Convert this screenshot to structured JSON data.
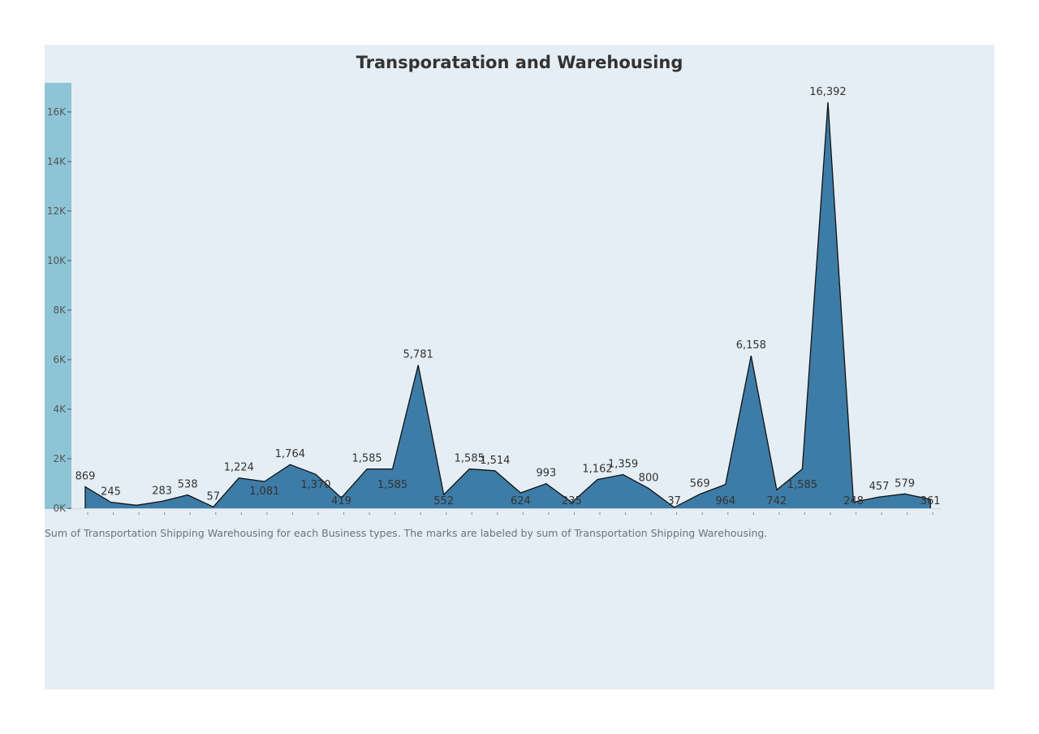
{
  "chart_data": {
    "type": "area",
    "title": "Transporatation and Warehousing",
    "caption": "Sum of Transportation Shipping Warehousing for each Business types.  The marks are labeled by sum of Transportation Shipping Warehousing.",
    "xlabel": "",
    "ylabel": "",
    "ylim": [
      0,
      17000
    ],
    "yticks": [
      0,
      2000,
      4000,
      6000,
      8000,
      10000,
      12000,
      14000,
      16000
    ],
    "ytick_labels": [
      "0K",
      "2K",
      "4K",
      "6K",
      "8K",
      "10K",
      "12K",
      "14K",
      "16K"
    ],
    "grid": false,
    "legend": "none",
    "values": [
      869,
      245,
      120,
      283,
      538,
      57,
      1224,
      1081,
      1764,
      1370,
      419,
      1585,
      1585,
      5781,
      552,
      1585,
      1514,
      624,
      993,
      235,
      1162,
      1359,
      800,
      37,
      569,
      964,
      6158,
      742,
      1585,
      16392,
      248,
      457,
      579,
      361
    ],
    "labels": [
      "869",
      "245",
      "",
      "283",
      "538",
      "57",
      "1,224",
      "1,081",
      "1,764",
      "1,370",
      "419",
      "1,585",
      "1,585",
      "5,781",
      "552",
      "1,585",
      "1,514",
      "624",
      "993",
      "235",
      "1,162",
      "1,359",
      "800",
      "37",
      "569",
      "964",
      "6,158",
      "742",
      "1,585",
      "16,392",
      "248",
      "457",
      "579",
      "361"
    ],
    "label_side": [
      "above",
      "above",
      "none",
      "above",
      "above",
      "above",
      "above",
      "below",
      "above",
      "below",
      "below",
      "above",
      "below",
      "above",
      "below",
      "above",
      "above",
      "below",
      "above",
      "below",
      "above",
      "above",
      "above",
      "below",
      "above",
      "below",
      "above",
      "below",
      "below",
      "above",
      "below",
      "above",
      "above",
      "below"
    ],
    "colors": {
      "fill": "#3d7ca6",
      "stroke": "#111111",
      "axis_band": "#8ec5d6",
      "background": "#e5eef4",
      "text": "#333333",
      "tick_text": "#555555"
    }
  }
}
